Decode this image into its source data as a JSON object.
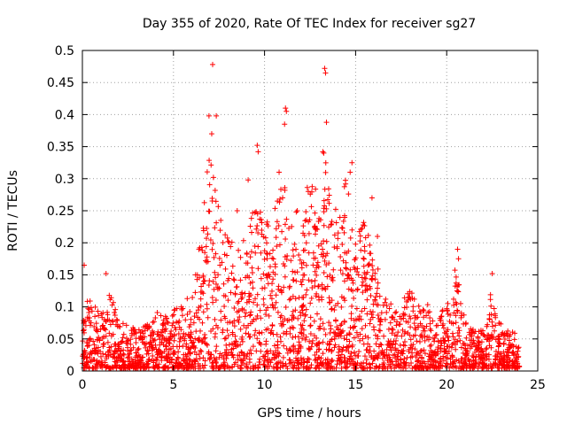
{
  "chart_data": {
    "type": "scatter",
    "title": "Day 355 of 2020, Rate Of TEC Index for receiver sg27",
    "xlabel": "GPS time / hours",
    "ylabel": "ROTI / TECUs",
    "xlim": [
      0,
      25
    ],
    "ylim": [
      0,
      0.5
    ],
    "xticks": [
      0,
      5,
      10,
      15,
      20,
      25
    ],
    "yticks": [
      0,
      0.05,
      0.1,
      0.15,
      0.2,
      0.25,
      0.3,
      0.35,
      0.4,
      0.45,
      0.5
    ],
    "grid": true,
    "marker": "+",
    "color": "#ff0000",
    "envelope": {
      "x": [
        0,
        0.2,
        0.5,
        1.0,
        1.4,
        2.0,
        2.5,
        3.0,
        3.5,
        4.0,
        4.5,
        5.0,
        5.5,
        6.0,
        6.5,
        6.8,
        7.0,
        7.2,
        7.5,
        8.0,
        8.5,
        9.0,
        9.5,
        10.0,
        10.5,
        11.0,
        11.5,
        12.0,
        12.5,
        13.0,
        13.3,
        13.6,
        14.0,
        14.5,
        15.0,
        15.5,
        16.0,
        16.5,
        17.0,
        17.5,
        18.0,
        18.5,
        19.0,
        19.5,
        20.0,
        20.5,
        21.0,
        21.5,
        22.0,
        22.4,
        22.8,
        23.2,
        23.6,
        24.0
      ],
      "y": [
        0.06,
        0.12,
        0.1,
        0.09,
        0.13,
        0.08,
        0.07,
        0.06,
        0.07,
        0.09,
        0.08,
        0.1,
        0.1,
        0.13,
        0.2,
        0.3,
        0.35,
        0.32,
        0.25,
        0.22,
        0.2,
        0.2,
        0.28,
        0.22,
        0.25,
        0.3,
        0.24,
        0.25,
        0.3,
        0.28,
        0.34,
        0.26,
        0.25,
        0.3,
        0.2,
        0.24,
        0.18,
        0.13,
        0.1,
        0.1,
        0.13,
        0.1,
        0.1,
        0.08,
        0.1,
        0.16,
        0.08,
        0.06,
        0.06,
        0.12,
        0.08,
        0.06,
        0.06,
        0.05
      ]
    },
    "outliers": [
      {
        "x": 0.1,
        "y": 0.165
      },
      {
        "x": 1.3,
        "y": 0.152
      },
      {
        "x": 6.95,
        "y": 0.398
      },
      {
        "x": 7.15,
        "y": 0.478
      },
      {
        "x": 7.35,
        "y": 0.398
      },
      {
        "x": 7.1,
        "y": 0.37
      },
      {
        "x": 9.6,
        "y": 0.352
      },
      {
        "x": 9.65,
        "y": 0.342
      },
      {
        "x": 9.1,
        "y": 0.298
      },
      {
        "x": 11.15,
        "y": 0.41
      },
      {
        "x": 11.2,
        "y": 0.405
      },
      {
        "x": 11.1,
        "y": 0.385
      },
      {
        "x": 13.3,
        "y": 0.472
      },
      {
        "x": 13.35,
        "y": 0.465
      },
      {
        "x": 13.4,
        "y": 0.388
      },
      {
        "x": 13.2,
        "y": 0.342
      },
      {
        "x": 13.25,
        "y": 0.34
      },
      {
        "x": 14.8,
        "y": 0.325
      },
      {
        "x": 14.7,
        "y": 0.31
      },
      {
        "x": 11.8,
        "y": 0.25
      },
      {
        "x": 15.9,
        "y": 0.27
      },
      {
        "x": 16.2,
        "y": 0.21
      },
      {
        "x": 20.6,
        "y": 0.19
      },
      {
        "x": 20.65,
        "y": 0.175
      },
      {
        "x": 22.5,
        "y": 0.152
      },
      {
        "x": 12.4,
        "y": 0.28
      },
      {
        "x": 8.5,
        "y": 0.25
      },
      {
        "x": 10.8,
        "y": 0.31
      }
    ]
  }
}
